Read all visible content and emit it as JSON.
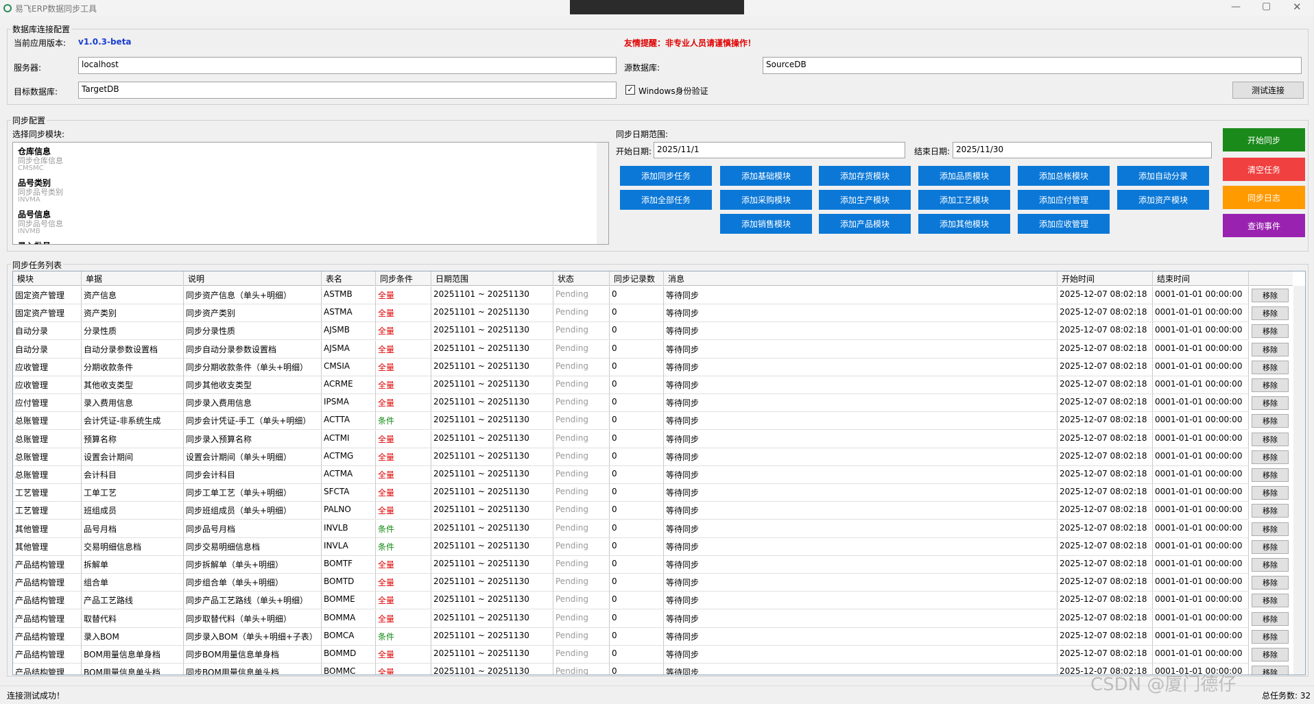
{
  "title_bar": {
    "title": "易飞ERP数据同步工具"
  },
  "connection": {
    "legend": "数据库连接配置",
    "version_label": "当前应用版本:",
    "version": "v1.0.3-beta",
    "warning": "友情提醒：非专业人员请谨慎操作！",
    "server_label": "服务器:",
    "server": "localhost",
    "source_label": "源数据库:",
    "source": "SourceDB",
    "target_label": "目标数据库:",
    "target": "TargetDB",
    "windows_auth": "Windows身份验证",
    "test_button": "测试连接"
  },
  "sync_config": {
    "legend": "同步配置",
    "module_label": "选择同步模块:",
    "modules": [
      {
        "name": "仓库信息",
        "desc": "同步仓库信息",
        "table": "CMSMC"
      },
      {
        "name": "品号类别",
        "desc": "同步品号类别",
        "table": "INVMA"
      },
      {
        "name": "品号信息",
        "desc": "同步品号信息",
        "table": "INVMB"
      },
      {
        "name": "录入批号"
      }
    ],
    "date_range_label": "同步日期范围:",
    "start_label": "开始日期:",
    "start": "2025/11/1",
    "end_label": "结束日期:",
    "end": "2025/11/30",
    "add_buttons": [
      "添加同步任务",
      "添加基础模块",
      "添加存货模块",
      "添加品质模块",
      "添加总帐模块",
      "添加自动分录",
      "添加全部任务",
      "添加采购模块",
      "添加生产模块",
      "添加工艺模块",
      "添加应付管理",
      "添加资产模块",
      "添加销售模块",
      "添加产品模块",
      "添加其他模块",
      "添加应收管理"
    ],
    "action_buttons": [
      "开始同步",
      "清空任务",
      "同步日志",
      "查询事件"
    ]
  },
  "task_list": {
    "legend": "同步任务列表",
    "columns": [
      "模块",
      "单据",
      "说明",
      "表名",
      "同步条件",
      "日期范围",
      "状态",
      "同步记录数",
      "消息",
      "开始时间",
      "结束时间"
    ],
    "condition_colors": {
      "全量": "#e00000",
      "条件": "#118a11"
    },
    "rows": [
      [
        "固定资产管理",
        "资产信息",
        "同步资产信息（单头+明细）",
        "ASTMB",
        "全量",
        "20251101 ~ 20251130",
        "Pending",
        0,
        "等待同步",
        "2025-12-07 08:02:18",
        "0001-01-01 00:00:00",
        "移除"
      ],
      [
        "固定资产管理",
        "资产类别",
        "同步资产类别",
        "ASTMA",
        "全量",
        "20251101 ~ 20251130",
        "Pending",
        0,
        "等待同步",
        "2025-12-07 08:02:18",
        "0001-01-01 00:00:00",
        "移除"
      ],
      [
        "自动分录",
        "分录性质",
        "同步分录性质",
        "AJSMB",
        "全量",
        "20251101 ~ 20251130",
        "Pending",
        0,
        "等待同步",
        "2025-12-07 08:02:18",
        "0001-01-01 00:00:00",
        "移除"
      ],
      [
        "自动分录",
        "自动分录参数设置档",
        "同步自动分录参数设置档",
        "AJSMA",
        "全量",
        "20251101 ~ 20251130",
        "Pending",
        0,
        "等待同步",
        "2025-12-07 08:02:18",
        "0001-01-01 00:00:00",
        "移除"
      ],
      [
        "应收管理",
        "分期收款条件",
        "同步分期收款条件（单头+明细）",
        "CMSIA",
        "全量",
        "20251101 ~ 20251130",
        "Pending",
        0,
        "等待同步",
        "2025-12-07 08:02:18",
        "0001-01-01 00:00:00",
        "移除"
      ],
      [
        "应收管理",
        "其他收支类型",
        "同步其他收支类型",
        "ACRME",
        "全量",
        "20251101 ~ 20251130",
        "Pending",
        0,
        "等待同步",
        "2025-12-07 08:02:18",
        "0001-01-01 00:00:00",
        "移除"
      ],
      [
        "应付管理",
        "录入费用信息",
        "同步录入费用信息",
        "IPSMA",
        "全量",
        "20251101 ~ 20251130",
        "Pending",
        0,
        "等待同步",
        "2025-12-07 08:02:18",
        "0001-01-01 00:00:00",
        "移除"
      ],
      [
        "总账管理",
        "会计凭证-非系统生成",
        "同步会计凭证-手工（单头+明细）",
        "ACTTA",
        "条件",
        "20251101 ~ 20251130",
        "Pending",
        0,
        "等待同步",
        "2025-12-07 08:02:18",
        "0001-01-01 00:00:00",
        "移除"
      ],
      [
        "总账管理",
        "预算名称",
        "同步录入预算名称",
        "ACTMI",
        "全量",
        "20251101 ~ 20251130",
        "Pending",
        0,
        "等待同步",
        "2025-12-07 08:02:18",
        "0001-01-01 00:00:00",
        "移除"
      ],
      [
        "总账管理",
        "设置会计期间",
        "设置会计期间（单头+明细）",
        "ACTMG",
        "全量",
        "20251101 ~ 20251130",
        "Pending",
        0,
        "等待同步",
        "2025-12-07 08:02:18",
        "0001-01-01 00:00:00",
        "移除"
      ],
      [
        "总账管理",
        "会计科目",
        "同步会计科目",
        "ACTMA",
        "全量",
        "20251101 ~ 20251130",
        "Pending",
        0,
        "等待同步",
        "2025-12-07 08:02:18",
        "0001-01-01 00:00:00",
        "移除"
      ],
      [
        "工艺管理",
        "工单工艺",
        "同步工单工艺（单头+明细）",
        "SFCTA",
        "全量",
        "20251101 ~ 20251130",
        "Pending",
        0,
        "等待同步",
        "2025-12-07 08:02:18",
        "0001-01-01 00:00:00",
        "移除"
      ],
      [
        "工艺管理",
        "班组成员",
        "同步班组成员（单头+明细）",
        "PALNO",
        "全量",
        "20251101 ~ 20251130",
        "Pending",
        0,
        "等待同步",
        "2025-12-07 08:02:18",
        "0001-01-01 00:00:00",
        "移除"
      ],
      [
        "其他管理",
        "品号月档",
        "同步品号月档",
        "INVLB",
        "条件",
        "20251101 ~ 20251130",
        "Pending",
        0,
        "等待同步",
        "2025-12-07 08:02:18",
        "0001-01-01 00:00:00",
        "移除"
      ],
      [
        "其他管理",
        "交易明细信息档",
        "同步交易明细信息档",
        "INVLA",
        "条件",
        "20251101 ~ 20251130",
        "Pending",
        0,
        "等待同步",
        "2025-12-07 08:02:18",
        "0001-01-01 00:00:00",
        "移除"
      ],
      [
        "产品结构管理",
        "拆解单",
        "同步拆解单（单头+明细）",
        "BOMTF",
        "全量",
        "20251101 ~ 20251130",
        "Pending",
        0,
        "等待同步",
        "2025-12-07 08:02:18",
        "0001-01-01 00:00:00",
        "移除"
      ],
      [
        "产品结构管理",
        "组合单",
        "同步组合单（单头+明细）",
        "BOMTD",
        "全量",
        "20251101 ~ 20251130",
        "Pending",
        0,
        "等待同步",
        "2025-12-07 08:02:18",
        "0001-01-01 00:00:00",
        "移除"
      ],
      [
        "产品结构管理",
        "产品工艺路线",
        "同步产品工艺路线（单头+明细）",
        "BOMME",
        "全量",
        "20251101 ~ 20251130",
        "Pending",
        0,
        "等待同步",
        "2025-12-07 08:02:18",
        "0001-01-01 00:00:00",
        "移除"
      ],
      [
        "产品结构管理",
        "取替代料",
        "同步取替代料（单头+明细）",
        "BOMMA",
        "全量",
        "20251101 ~ 20251130",
        "Pending",
        0,
        "等待同步",
        "2025-12-07 08:02:18",
        "0001-01-01 00:00:00",
        "移除"
      ],
      [
        "产品结构管理",
        "录入BOM",
        "同步录入BOM（单头+明细+子表）",
        "BOMCA",
        "条件",
        "20251101 ~ 20251130",
        "Pending",
        0,
        "等待同步",
        "2025-12-07 08:02:18",
        "0001-01-01 00:00:00",
        "移除"
      ],
      [
        "产品结构管理",
        "BOM用量信息单身档",
        "同步BOM用量信息单身档",
        "BOMMD",
        "全量",
        "20251101 ~ 20251130",
        "Pending",
        0,
        "等待同步",
        "2025-12-07 08:02:18",
        "0001-01-01 00:00:00",
        "移除"
      ],
      [
        "产品结构管理",
        "BOM用量信息单头档",
        "同步BOM用量信息单头档",
        "BOMMC",
        "全量",
        "20251101 ~ 20251130",
        "Pending",
        0,
        "等待同步",
        "2025-12-07 08:02:18",
        "0001-01-01 00:00:00",
        "移除"
      ]
    ]
  },
  "status_bar": {
    "message": "连接测试成功！",
    "total": "总任务数: 32"
  },
  "watermark": "CSDN @厦门德仔"
}
